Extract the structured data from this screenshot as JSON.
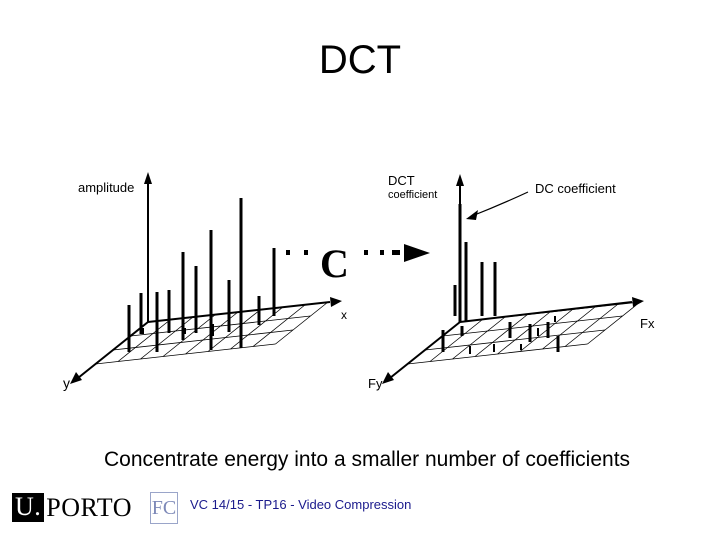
{
  "slide": {
    "title": "DCT",
    "caption": "Concentrate energy into a smaller number of coefficients",
    "footer": "VC 14/15 - TP16 - Video Compression"
  },
  "diagram": {
    "left": {
      "amplitude_label": "amplitude",
      "x_label": "x",
      "y_label": "y"
    },
    "transform_symbol": "C",
    "right": {
      "dct_label_line1": "DCT",
      "dct_label_line2": "coefficient",
      "dc_label": "DC coefficient",
      "fx_label": "Fx",
      "fy_label": "Fy"
    }
  },
  "logos": {
    "uporto_u": "U.",
    "uporto_rest": "PORTO",
    "fc": "FC"
  }
}
